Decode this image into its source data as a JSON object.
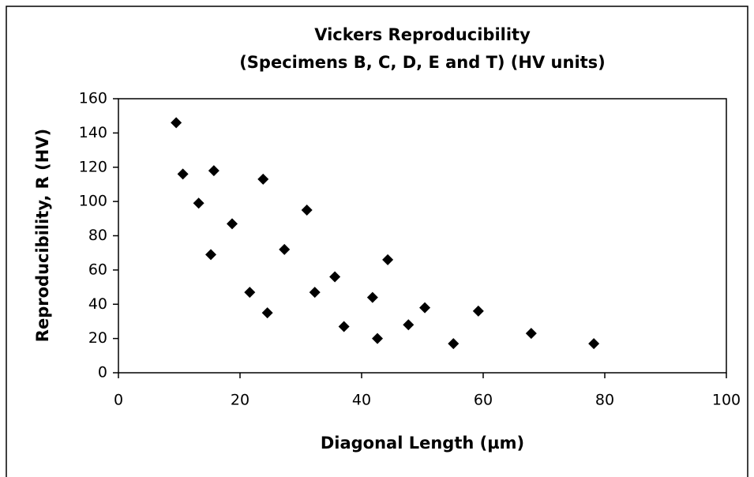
{
  "chart_data": {
    "type": "scatter",
    "title": "Vickers Reproducibility",
    "subtitle": "(Specimens B, C, D, E and T) (HV units)",
    "x_label": "Diagonal Length (µm)",
    "y_label": "Reproducibility, R (HV)",
    "color": "#000000",
    "marker": "diamond",
    "x": [
      9.5,
      10.6,
      15.7,
      13.2,
      18.7,
      15.2,
      23.8,
      27.3,
      31.0,
      21.6,
      24.5,
      35.6,
      32.3,
      37.1,
      41.8,
      44.3,
      42.6,
      47.7,
      50.4,
      55.1,
      59.2,
      67.9,
      78.2
    ],
    "values": [
      146,
      116,
      118,
      99,
      87,
      69,
      113,
      72,
      95,
      47,
      35,
      56,
      47,
      27,
      44,
      66,
      20,
      28,
      38,
      17,
      36,
      23,
      17
    ],
    "xlim": [
      0,
      100
    ],
    "xticks": [
      0,
      20,
      40,
      60,
      80,
      100
    ],
    "ylim": [
      0,
      160
    ],
    "yticks": [
      0,
      20,
      40,
      60,
      80,
      100,
      120,
      140,
      160
    ],
    "grid": false
  }
}
